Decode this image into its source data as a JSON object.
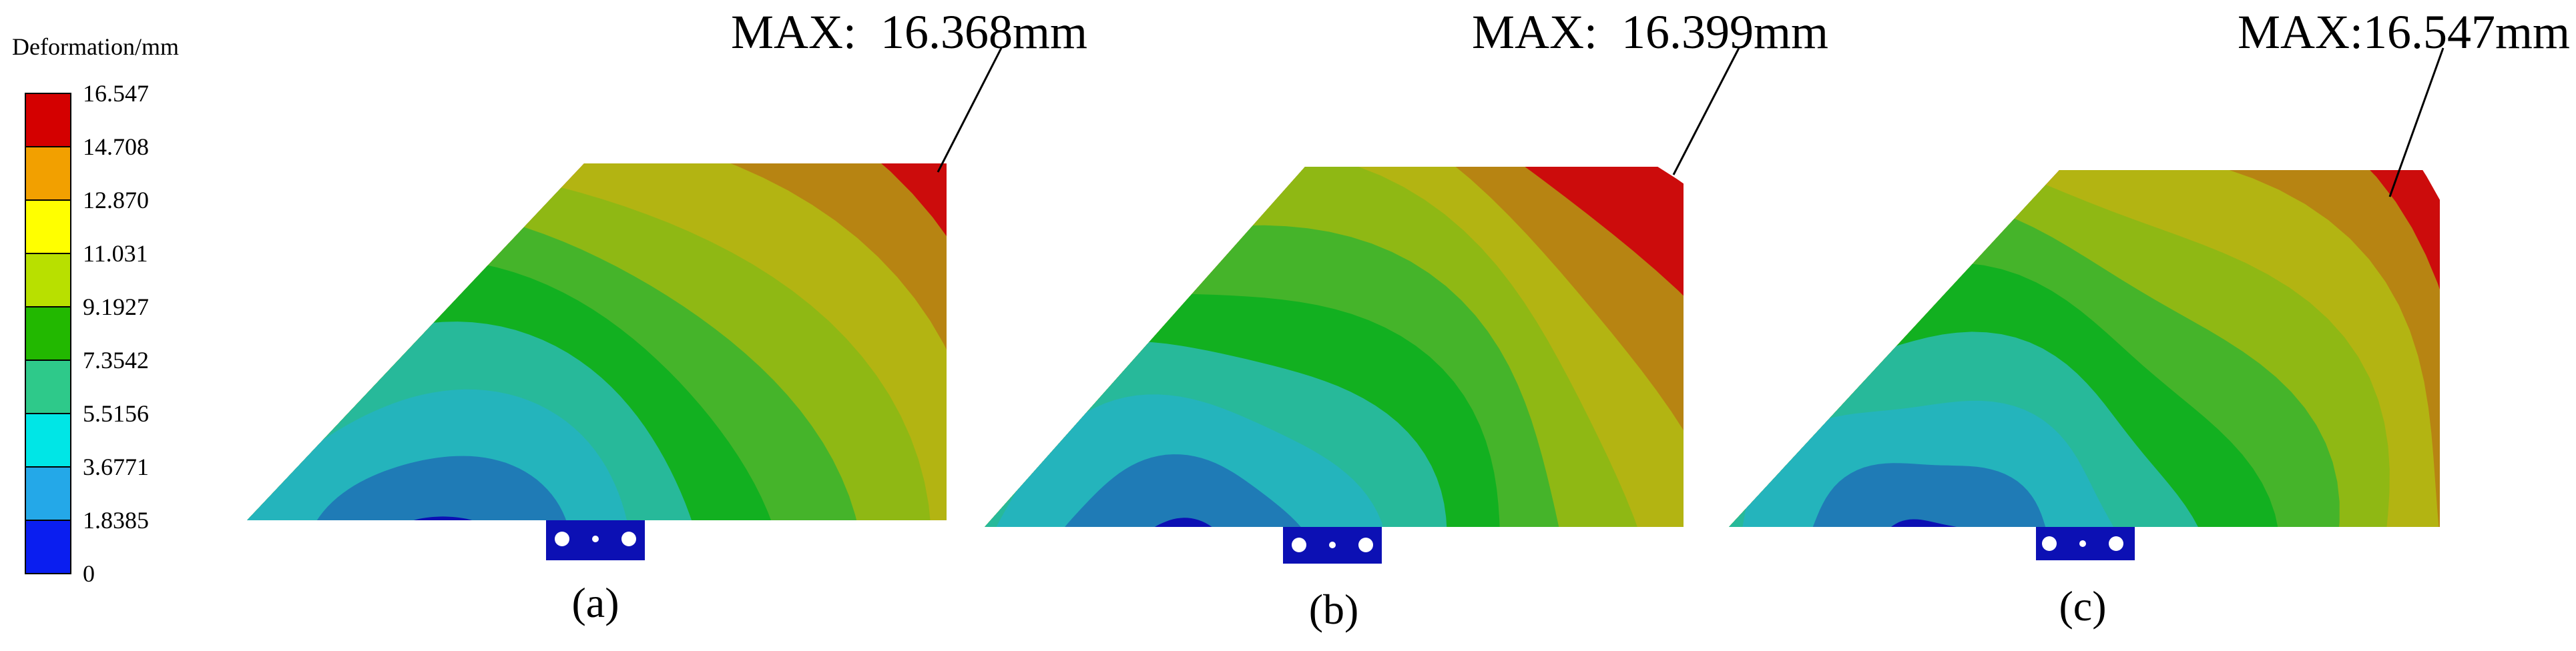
{
  "legend": {
    "title": "Deformation/mm",
    "ticks": [
      "16.547",
      "14.708",
      "12.870",
      "11.031",
      "9.1927",
      "7.3542",
      "5.5156",
      "3.6771",
      "1.8385",
      "0"
    ],
    "colors": [
      "#d40000",
      "#f2a000",
      "#ffff00",
      "#b8e000",
      "#22b800",
      "#2ec98a",
      "#00e6e6",
      "#24a8e8",
      "#0a1ef0"
    ]
  },
  "band_colors": [
    "#0c10b4",
    "#1f7bb6",
    "#24b4bc",
    "#27b99a",
    "#12b020",
    "#45b42a",
    "#8fb814",
    "#b3b412",
    "#b78412",
    "#cc0c0c"
  ],
  "panels": [
    {
      "id": "a",
      "label": "(a)",
      "max_label": "MAX:  16.368mm"
    },
    {
      "id": "b",
      "label": "(b)",
      "max_label": "MAX:  16.399mm"
    },
    {
      "id": "c",
      "label": "(c)",
      "max_label": "MAX:16.547mm"
    }
  ]
}
